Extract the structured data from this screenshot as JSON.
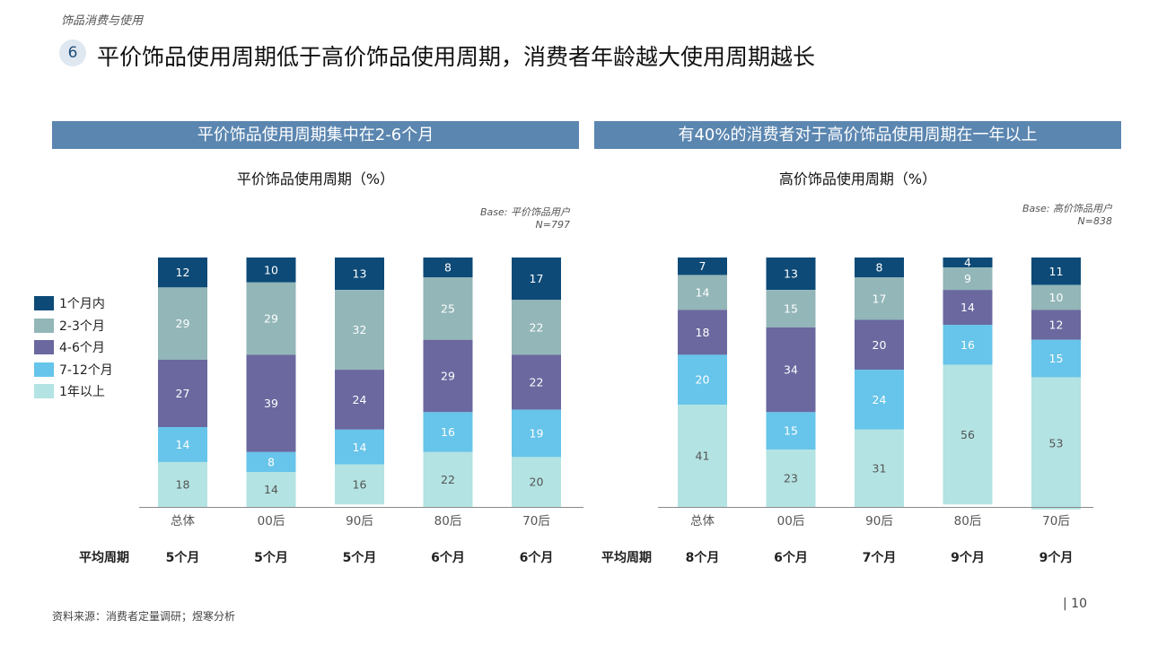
{
  "header": {
    "section_tag": "饰品消费与使用",
    "number": "6",
    "title": "平价饰品使用周期低于高价饰品使用周期，消费者年龄越大使用周期越长"
  },
  "colors": {
    "s1": "#0d4a77",
    "s2": "#93b6b8",
    "s3": "#6a689f",
    "s4": "#67c4ea",
    "s5": "#b3e3e2",
    "banner": "#5b86b0"
  },
  "legend": [
    "1个月内",
    "2-3个月",
    "4-6个月",
    "7-12个月",
    "1年以上"
  ],
  "left": {
    "banner": "平价饰品使用周期集中在2-6个月",
    "base_line1": "Base: 平价饰品用户",
    "base_line2": "N=797",
    "avg_label": "平均周期",
    "avg_values": [
      "5个月",
      "5个月",
      "5个月",
      "6个月",
      "6个月"
    ]
  },
  "right": {
    "banner": "有40%的消费者对于高价饰品使用周期在一年以上",
    "base_line1": "Base: 高价饰品用户",
    "base_line2": "N=838",
    "avg_label": "平均周期",
    "avg_values": [
      "8个月",
      "6个月",
      "7个月",
      "9个月",
      "9个月"
    ]
  },
  "chart_data": [
    {
      "type": "bar",
      "stacked": true,
      "title": "平价饰品使用周期（%）",
      "categories": [
        "总体",
        "00后",
        "90后",
        "80后",
        "70后"
      ],
      "ylim": [
        0,
        100
      ],
      "series": [
        {
          "name": "1个月内",
          "values": [
            12,
            10,
            13,
            8,
            17
          ]
        },
        {
          "name": "2-3个月",
          "values": [
            29,
            29,
            32,
            25,
            22
          ]
        },
        {
          "name": "4-6个月",
          "values": [
            27,
            39,
            24,
            29,
            22
          ]
        },
        {
          "name": "7-12个月",
          "values": [
            14,
            8,
            14,
            16,
            19
          ]
        },
        {
          "name": "1年以上",
          "values": [
            18,
            14,
            16,
            22,
            20
          ]
        }
      ]
    },
    {
      "type": "bar",
      "stacked": true,
      "title": "高价饰品使用周期（%）",
      "categories": [
        "总体",
        "00后",
        "90后",
        "80后",
        "70后"
      ],
      "ylim": [
        0,
        100
      ],
      "series": [
        {
          "name": "1个月内",
          "values": [
            7,
            13,
            8,
            4,
            11
          ]
        },
        {
          "name": "2-3个月",
          "values": [
            14,
            15,
            17,
            9,
            10
          ]
        },
        {
          "name": "4-6个月",
          "values": [
            18,
            34,
            20,
            14,
            12
          ]
        },
        {
          "name": "7-12个月",
          "values": [
            20,
            15,
            24,
            16,
            15
          ]
        },
        {
          "name": "1年以上",
          "values": [
            41,
            23,
            31,
            56,
            53
          ]
        }
      ]
    }
  ],
  "footer": {
    "source": "资料来源：消费者定量调研；煜寒分析",
    "page": "| 10"
  }
}
